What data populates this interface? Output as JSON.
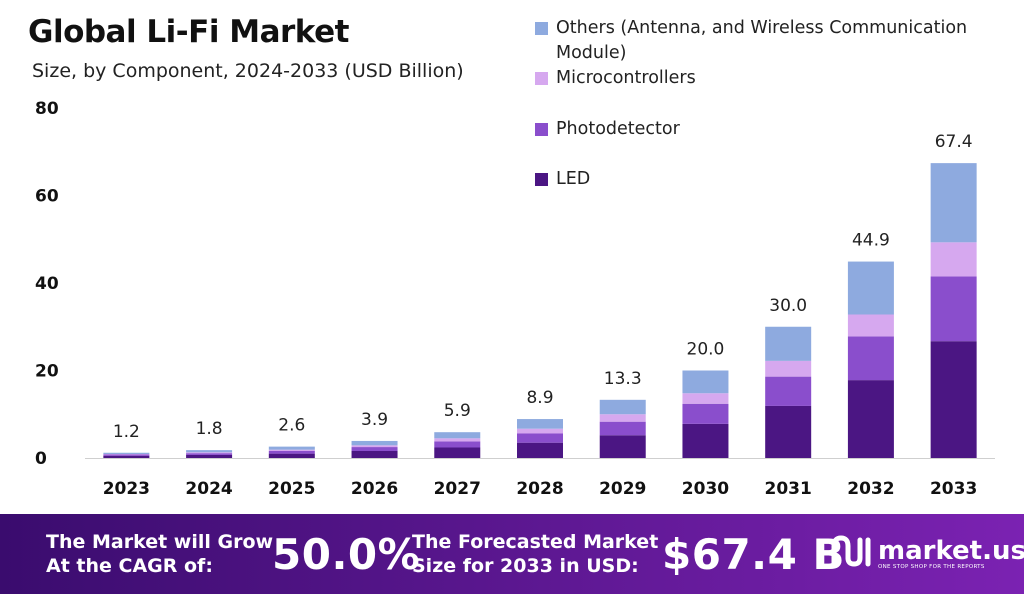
{
  "header": {
    "title": "Global Li-Fi Market",
    "subtitle": "Size, by Component, 2024-2033 (USD Billion)"
  },
  "legend": [
    {
      "label": "Others (Antenna, and Wireless Communication Module)",
      "color": "#8eaadf"
    },
    {
      "label": "Microcontrollers",
      "color": "#d6a8ef"
    },
    {
      "label": "Photodetector",
      "color": "#8a4ecc"
    },
    {
      "label": "LED",
      "color": "#4b1683"
    }
  ],
  "chart_data": {
    "type": "bar",
    "stacked": true,
    "title": "Global Li-Fi Market",
    "subtitle": "Size, by Component, 2024-2033 (USD Billion)",
    "categories": [
      "2023",
      "2024",
      "2025",
      "2026",
      "2027",
      "2028",
      "2029",
      "2030",
      "2031",
      "2032",
      "2033"
    ],
    "totals": [
      1.2,
      1.8,
      2.6,
      3.9,
      5.9,
      8.9,
      13.3,
      20.0,
      30.0,
      44.9,
      67.4
    ],
    "total_labels": [
      "1.2",
      "1.8",
      "2.6",
      "3.9",
      "5.9",
      "8.9",
      "13.3",
      "20.0",
      "30.0",
      "44.9",
      "67.4"
    ],
    "series": [
      {
        "name": "LED",
        "color": "#4b1683",
        "values": [
          0.5,
          0.7,
          1.0,
          1.6,
          2.4,
          3.5,
          5.2,
          7.8,
          11.9,
          17.8,
          26.7
        ]
      },
      {
        "name": "Photodetector",
        "color": "#8a4ecc",
        "values": [
          0.3,
          0.4,
          0.6,
          0.9,
          1.4,
          2.1,
          3.1,
          4.6,
          6.7,
          10.0,
          14.8
        ]
      },
      {
        "name": "Microcontrollers",
        "color": "#d6a8ef",
        "values": [
          0.1,
          0.2,
          0.3,
          0.4,
          0.7,
          1.1,
          1.7,
          2.4,
          3.6,
          5.0,
          7.8
        ]
      },
      {
        "name": "Others (Antenna, and Wireless Communication Module)",
        "color": "#8eaadf",
        "values": [
          0.3,
          0.5,
          0.7,
          1.0,
          1.4,
          2.2,
          3.3,
          5.2,
          7.8,
          12.1,
          18.1
        ]
      }
    ],
    "yticks": [
      0,
      20,
      40,
      60,
      80
    ],
    "ylim": [
      0,
      80
    ],
    "xlabel": "",
    "ylabel": "",
    "grid": false,
    "legend_position": "top-right"
  },
  "footer": {
    "cagr_text_line1": "The Market will Grow",
    "cagr_text_line2": "At the CAGR of:",
    "cagr_value": "50.0%",
    "forecast_text_line1": "The Forecasted Market",
    "forecast_text_line2": "Size for 2033 in USD:",
    "forecast_value": "$67.4 B",
    "brand_name": "market.us",
    "brand_tagline": "ONE STOP SHOP FOR THE REPORTS"
  }
}
